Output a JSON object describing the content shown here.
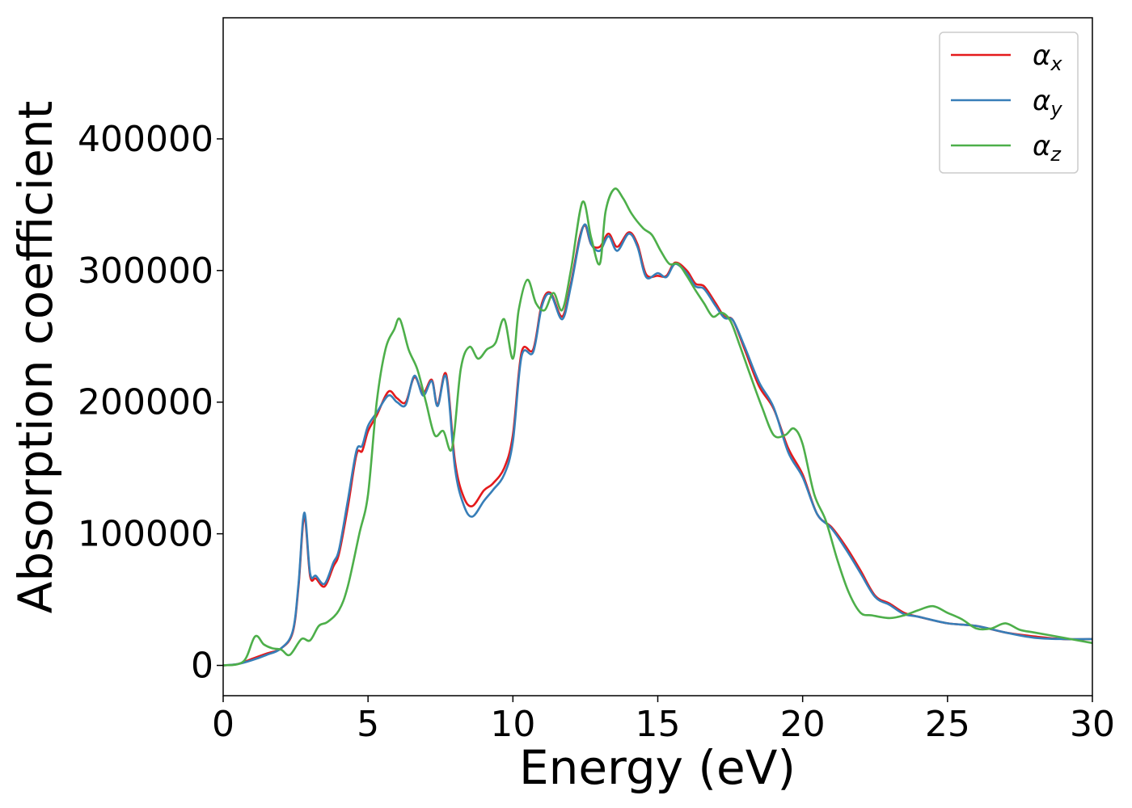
{
  "chart_data": {
    "type": "line",
    "xlabel": "Energy (eV)",
    "ylabel": "Absorption coefficient",
    "xlim": [
      0,
      30
    ],
    "ylim": [
      -23000,
      492000
    ],
    "x_ticks": [
      0,
      5,
      10,
      15,
      20,
      25,
      30
    ],
    "x_tick_labels": [
      "0",
      "5",
      "10",
      "15",
      "20",
      "25",
      "30"
    ],
    "y_ticks": [
      0,
      100000,
      200000,
      300000,
      400000
    ],
    "y_tick_labels": [
      "0",
      "100000",
      "200000",
      "300000",
      "400000"
    ],
    "grid": false,
    "legend_position": "top-right",
    "series": [
      {
        "name": "αx",
        "symbol": "α",
        "subscript": "x",
        "color": "#e41a1c",
        "x": [
          0,
          0.5,
          1,
          1.5,
          2,
          2.4,
          2.6,
          2.8,
          3.0,
          3.2,
          3.5,
          3.8,
          4.0,
          4.3,
          4.6,
          4.8,
          5.0,
          5.3,
          5.7,
          6.0,
          6.3,
          6.6,
          6.9,
          7.2,
          7.4,
          7.7,
          8.0,
          8.3,
          8.6,
          9.0,
          9.3,
          9.7,
          10.0,
          10.3,
          10.7,
          11.0,
          11.3,
          11.7,
          12.0,
          12.3,
          12.5,
          12.7,
          13.0,
          13.3,
          13.6,
          14.0,
          14.3,
          14.6,
          15.0,
          15.3,
          15.6,
          16.0,
          16.3,
          16.6,
          17.0,
          17.3,
          17.6,
          18.0,
          18.5,
          19.0,
          19.5,
          20.0,
          20.5,
          21.0,
          21.5,
          22.0,
          22.5,
          23.0,
          23.5,
          24.0,
          25.0,
          26.0,
          27.0,
          28.0,
          29.0,
          30.0
        ],
        "y": [
          0,
          1000,
          5000,
          9000,
          13000,
          25000,
          60000,
          113000,
          68000,
          66000,
          60000,
          75000,
          85000,
          120000,
          160000,
          163000,
          178000,
          190000,
          208000,
          203000,
          200000,
          219000,
          207000,
          217000,
          198000,
          221000,
          155000,
          128000,
          121000,
          133000,
          138000,
          150000,
          175000,
          238000,
          240000,
          275000,
          283000,
          265000,
          290000,
          325000,
          334000,
          320000,
          318000,
          328000,
          318000,
          329000,
          320000,
          297000,
          296000,
          296000,
          306000,
          300000,
          290000,
          288000,
          275000,
          265000,
          262000,
          240000,
          212000,
          195000,
          165000,
          145000,
          115000,
          105000,
          90000,
          72000,
          53000,
          47000,
          40000,
          37000,
          32000,
          30000,
          25000,
          22000,
          20000,
          20000
        ]
      },
      {
        "name": "αy",
        "symbol": "α",
        "subscript": "y",
        "color": "#377eb8",
        "x": [
          0,
          0.5,
          1,
          1.5,
          2,
          2.4,
          2.6,
          2.8,
          3.0,
          3.2,
          3.5,
          3.8,
          4.0,
          4.3,
          4.6,
          4.8,
          5.0,
          5.3,
          5.7,
          6.0,
          6.3,
          6.6,
          6.9,
          7.2,
          7.4,
          7.7,
          8.0,
          8.3,
          8.6,
          9.0,
          9.3,
          9.7,
          10.0,
          10.3,
          10.7,
          11.0,
          11.3,
          11.7,
          12.0,
          12.3,
          12.5,
          12.7,
          13.0,
          13.3,
          13.6,
          14.0,
          14.3,
          14.6,
          15.0,
          15.3,
          15.6,
          16.0,
          16.3,
          16.6,
          17.0,
          17.3,
          17.6,
          18.0,
          18.5,
          19.0,
          19.5,
          20.0,
          20.5,
          21.0,
          21.5,
          22.0,
          22.5,
          23.0,
          23.5,
          24.0,
          25.0,
          26.0,
          27.0,
          28.0,
          29.0,
          30.0
        ],
        "y": [
          0,
          1000,
          4000,
          8000,
          13000,
          26000,
          62000,
          116000,
          70000,
          68000,
          62000,
          78000,
          88000,
          125000,
          163000,
          167000,
          182000,
          192000,
          205000,
          200000,
          198000,
          220000,
          205000,
          216000,
          197000,
          219000,
          150000,
          122000,
          113000,
          125000,
          133000,
          145000,
          170000,
          235000,
          238000,
          273000,
          282000,
          263000,
          288000,
          323000,
          335000,
          320000,
          315000,
          326000,
          315000,
          328000,
          318000,
          295000,
          298000,
          295000,
          305000,
          298000,
          288000,
          286000,
          273000,
          264000,
          262000,
          242000,
          215000,
          196000,
          162000,
          143000,
          115000,
          104000,
          88000,
          70000,
          52000,
          46000,
          39000,
          37000,
          32000,
          30000,
          25000,
          21000,
          20000,
          20000
        ]
      },
      {
        "name": "αz",
        "symbol": "α",
        "subscript": "z",
        "color": "#4daf4a",
        "x": [
          0,
          0.7,
          1.1,
          1.4,
          1.7,
          2.0,
          2.3,
          2.7,
          3.0,
          3.3,
          3.6,
          4.0,
          4.3,
          4.7,
          5.0,
          5.3,
          5.6,
          5.9,
          6.1,
          6.4,
          6.7,
          7.0,
          7.3,
          7.6,
          7.9,
          8.2,
          8.5,
          8.8,
          9.1,
          9.4,
          9.7,
          10.0,
          10.2,
          10.5,
          10.8,
          11.1,
          11.4,
          11.7,
          12.0,
          12.4,
          12.7,
          13.0,
          13.2,
          13.5,
          13.8,
          14.1,
          14.5,
          14.8,
          15.1,
          15.4,
          15.7,
          16.0,
          16.3,
          16.6,
          16.9,
          17.2,
          17.5,
          17.8,
          18.2,
          18.6,
          19.0,
          19.4,
          19.7,
          20.0,
          20.4,
          20.8,
          21.2,
          21.6,
          22.0,
          22.4,
          23.0,
          23.5,
          24.0,
          24.5,
          25.0,
          25.5,
          26.0,
          26.5,
          27.0,
          27.5,
          28.0,
          29.0,
          30.0
        ],
        "y": [
          0,
          3000,
          22000,
          16000,
          13000,
          12000,
          8000,
          20000,
          19000,
          30000,
          33000,
          42000,
          60000,
          100000,
          130000,
          200000,
          240000,
          255000,
          263000,
          240000,
          225000,
          200000,
          175000,
          178000,
          165000,
          225000,
          242000,
          233000,
          240000,
          245000,
          263000,
          233000,
          270000,
          293000,
          275000,
          270000,
          283000,
          270000,
          300000,
          352000,
          325000,
          305000,
          345000,
          362000,
          355000,
          343000,
          332000,
          327000,
          315000,
          305000,
          305000,
          296000,
          285000,
          275000,
          265000,
          268000,
          262000,
          245000,
          220000,
          196000,
          175000,
          175000,
          180000,
          168000,
          130000,
          110000,
          80000,
          55000,
          40000,
          38000,
          36000,
          38000,
          42000,
          45000,
          40000,
          35000,
          28000,
          28000,
          32000,
          27000,
          25000,
          21000,
          17000
        ]
      }
    ]
  }
}
